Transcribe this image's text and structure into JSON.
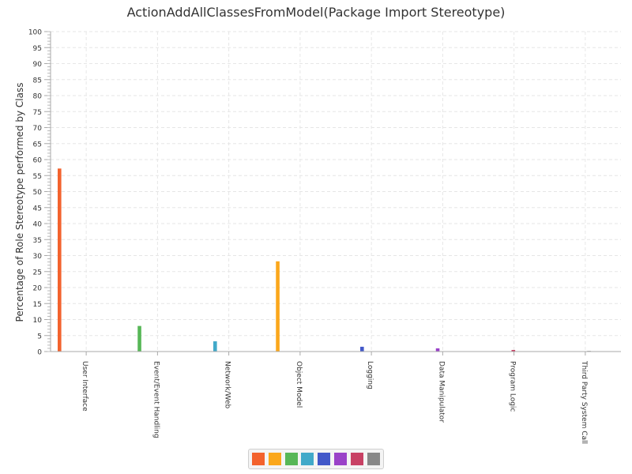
{
  "chart_data": {
    "type": "bar",
    "title": "ActionAddAllClassesFromModel(Package Import Stereotype)",
    "xlabel": "",
    "ylabel": "Percentage of Role Stereotype performed by Class",
    "ylim": [
      0,
      100
    ],
    "y_major_step": 5,
    "grid": true,
    "categories": [
      "User Interface",
      "Event/Event Handling",
      "Network/Web",
      "Object Model",
      "Logging",
      "Data Manipulator",
      "Program Logic",
      "Third Party System Call"
    ],
    "series": [
      {
        "color": "#f3622d",
        "values": [
          57.2,
          0,
          0,
          0,
          0,
          0,
          0,
          0
        ]
      },
      {
        "color": "#fba71b",
        "values": [
          0,
          0,
          0,
          28.2,
          0,
          0,
          0,
          0
        ]
      },
      {
        "color": "#57b757",
        "values": [
          0,
          8.0,
          0,
          0,
          0,
          0,
          0,
          0
        ]
      },
      {
        "color": "#41a9c9",
        "values": [
          0,
          0,
          3.2,
          0,
          0,
          0,
          0,
          0
        ]
      },
      {
        "color": "#4258c9",
        "values": [
          0,
          0,
          0,
          0,
          1.5,
          0,
          0,
          0
        ]
      },
      {
        "color": "#9a42c8",
        "values": [
          0,
          0,
          0,
          0,
          0,
          1.0,
          0,
          0
        ]
      },
      {
        "color": "#c84164",
        "values": [
          0,
          0,
          0,
          0,
          0,
          0,
          0.5,
          0
        ]
      },
      {
        "color": "#888888",
        "values": [
          0,
          0,
          0,
          0,
          0,
          0,
          0,
          0.2
        ]
      }
    ]
  }
}
